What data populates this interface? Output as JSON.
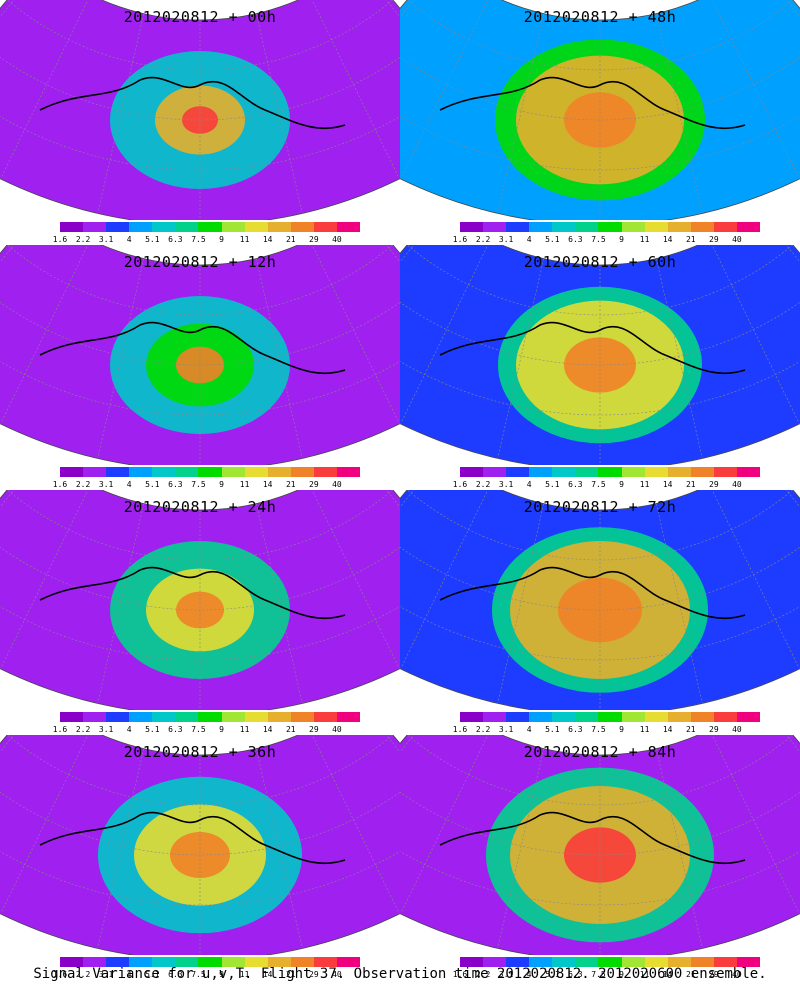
{
  "caption": "Signal Variance for u,v,T. Flight 37. Observation time 2012020812. 2012020600 ensemble.",
  "colorbar": {
    "ticks": [
      "1.6",
      "2.2",
      "3.1",
      "4",
      "5.1",
      "6.3",
      "7.5",
      "9",
      "11",
      "14",
      "21",
      "29",
      "40"
    ],
    "colors": [
      "#8a00c8",
      "#a020f0",
      "#1e3cff",
      "#00a0ff",
      "#00c8c8",
      "#00d28c",
      "#00dc00",
      "#a0e632",
      "#e6dc32",
      "#e6af2d",
      "#f08228",
      "#fa3c3c",
      "#f0007f"
    ]
  },
  "panels": [
    {
      "title": "2012020812 + 00h"
    },
    {
      "title": "2012020812 + 48h"
    },
    {
      "title": "2012020812 + 12h"
    },
    {
      "title": "2012020812 + 60h"
    },
    {
      "title": "2012020812 + 24h"
    },
    {
      "title": "2012020812 + 72h"
    },
    {
      "title": "2012020812 + 36h"
    },
    {
      "title": "2012020812 + 84h"
    }
  ]
}
